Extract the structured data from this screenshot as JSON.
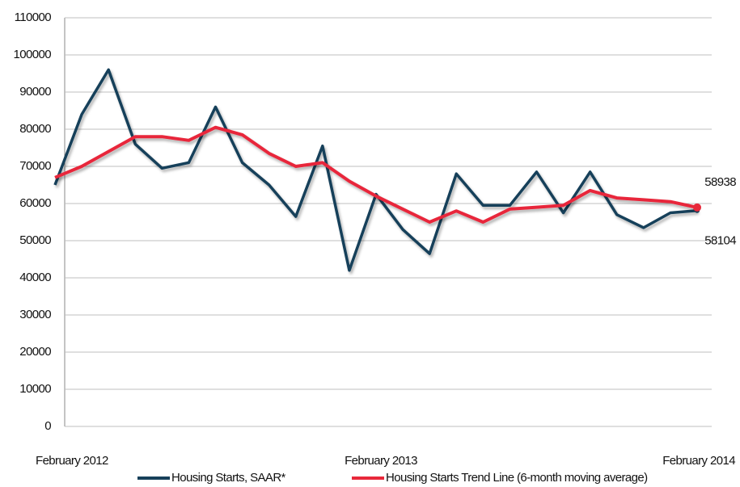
{
  "chart_data": {
    "type": "line",
    "categories": [
      "February 2012",
      null,
      null,
      null,
      null,
      null,
      null,
      null,
      null,
      null,
      null,
      null,
      "February 2013",
      null,
      null,
      null,
      null,
      null,
      null,
      null,
      null,
      null,
      null,
      null,
      "February 2014"
    ],
    "series": [
      {
        "name": "Housing Starts, SAAR*",
        "color": "#17405a",
        "values": [
          65000,
          84000,
          96000,
          76000,
          69500,
          71000,
          86000,
          71000,
          65000,
          56500,
          75500,
          42000,
          62500,
          53000,
          46500,
          68000,
          59500,
          59500,
          68500,
          57500,
          68500,
          57000,
          53500,
          57500,
          58104
        ]
      },
      {
        "name": "Housing Starts Trend Line (6-month moving average)",
        "color": "#e8283a",
        "values": [
          67000,
          70000,
          74000,
          78000,
          78000,
          77000,
          80500,
          78500,
          73500,
          70000,
          71000,
          66000,
          62000,
          58500,
          55000,
          58000,
          55000,
          58500,
          59000,
          59500,
          63500,
          61500,
          61000,
          60500,
          58938
        ]
      }
    ],
    "ylim": [
      0,
      110000
    ],
    "yticks": [
      0,
      10000,
      20000,
      30000,
      40000,
      50000,
      60000,
      70000,
      80000,
      90000,
      100000,
      110000
    ],
    "grid": true
  }
}
